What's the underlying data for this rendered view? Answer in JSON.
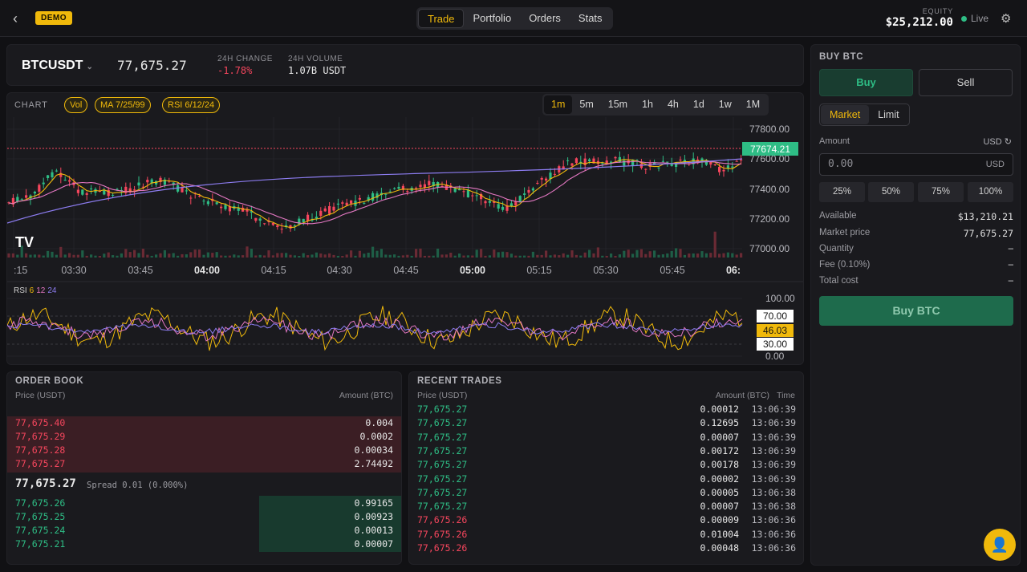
{
  "header": {
    "demo_badge": "DEMO",
    "tabs": [
      "Trade",
      "Portfolio",
      "Orders",
      "Stats"
    ],
    "active_tab": "Trade",
    "equity_label": "EQUITY",
    "equity_value": "$25,212.00",
    "live_label": "Live"
  },
  "ticker": {
    "symbol": "BTCUSDT",
    "last_price": "77,675.27",
    "change_label": "24H CHANGE",
    "change_value": "-1.78%",
    "volume_label": "24H VOLUME",
    "volume_value": "1.07B USDT"
  },
  "chart": {
    "title": "CHART",
    "indicators": [
      "Vol",
      "MA 7/25/99",
      "RSI 6/12/24"
    ],
    "timeframes": [
      "1m",
      "5m",
      "15m",
      "1h",
      "4h",
      "1d",
      "1w",
      "1M"
    ],
    "active_timeframe": "1m",
    "price_ticks": [
      "77800.00",
      "77600.00",
      "77400.00",
      "77200.00",
      "77000.00"
    ],
    "current_price_tag": "77674.21",
    "time_ticks": [
      ":15",
      "03:30",
      "03:45",
      "04:00",
      "04:15",
      "04:30",
      "04:45",
      "05:00",
      "05:15",
      "05:30",
      "05:45",
      "06:"
    ],
    "rsi_label": "RSI",
    "rsi_periods": [
      "6",
      "12",
      "24"
    ],
    "rsi_ticks": [
      "100.00",
      "70.00",
      "46.03",
      "30.00",
      "0.00"
    ],
    "colors": {
      "up": "#2ebd85",
      "down": "#f6465d",
      "ma7": "#f0b90b",
      "ma25": "#e377c2",
      "ma99": "#8c7cf0"
    }
  },
  "order_book": {
    "title": "ORDER BOOK",
    "col_price": "Price (USDT)",
    "col_amount": "Amount (BTC)",
    "asks": [
      {
        "price": "77,675.40",
        "amount": "0.004"
      },
      {
        "price": "77,675.29",
        "amount": "0.0002"
      },
      {
        "price": "77,675.28",
        "amount": "0.00034"
      },
      {
        "price": "77,675.27",
        "amount": "2.74492"
      }
    ],
    "mid_price": "77,675.27",
    "spread": "Spread 0.01 (0.000%)",
    "bids": [
      {
        "price": "77,675.26",
        "amount": "0.99165"
      },
      {
        "price": "77,675.25",
        "amount": "0.00923"
      },
      {
        "price": "77,675.24",
        "amount": "0.00013"
      },
      {
        "price": "77,675.21",
        "amount": "0.00007"
      }
    ]
  },
  "recent_trades": {
    "title": "RECENT TRADES",
    "col_price": "Price (USDT)",
    "col_amount": "Amount (BTC)",
    "col_time": "Time",
    "rows": [
      {
        "price": "77,675.27",
        "amount": "0.00012",
        "time": "13:06:39",
        "side": "buy"
      },
      {
        "price": "77,675.27",
        "amount": "0.12695",
        "time": "13:06:39",
        "side": "buy"
      },
      {
        "price": "77,675.27",
        "amount": "0.00007",
        "time": "13:06:39",
        "side": "buy"
      },
      {
        "price": "77,675.27",
        "amount": "0.00172",
        "time": "13:06:39",
        "side": "buy"
      },
      {
        "price": "77,675.27",
        "amount": "0.00178",
        "time": "13:06:39",
        "side": "buy"
      },
      {
        "price": "77,675.27",
        "amount": "0.00002",
        "time": "13:06:39",
        "side": "buy"
      },
      {
        "price": "77,675.27",
        "amount": "0.00005",
        "time": "13:06:38",
        "side": "buy"
      },
      {
        "price": "77,675.27",
        "amount": "0.00007",
        "time": "13:06:38",
        "side": "buy"
      },
      {
        "price": "77,675.26",
        "amount": "0.00009",
        "time": "13:06:36",
        "side": "sell"
      },
      {
        "price": "77,675.26",
        "amount": "0.01004",
        "time": "13:06:36",
        "side": "sell"
      },
      {
        "price": "77,675.26",
        "amount": "0.00048",
        "time": "13:06:36",
        "side": "sell"
      }
    ]
  },
  "order_form": {
    "title": "BUY BTC",
    "buy_label": "Buy",
    "sell_label": "Sell",
    "type_market": "Market",
    "type_limit": "Limit",
    "amount_label": "Amount",
    "amount_unit_toggle": "USD",
    "amount_placeholder": "0.00",
    "amount_unit": "USD",
    "percents": [
      "25%",
      "50%",
      "75%",
      "100%"
    ],
    "info": [
      {
        "key": "Available",
        "value": "$13,210.21"
      },
      {
        "key": "Market price",
        "value": "77,675.27"
      },
      {
        "key": "Quantity",
        "value": "–"
      },
      {
        "key": "Fee (0.10%)",
        "value": "–"
      },
      {
        "key": "Total cost",
        "value": "–"
      }
    ],
    "submit_label": "Buy BTC"
  }
}
